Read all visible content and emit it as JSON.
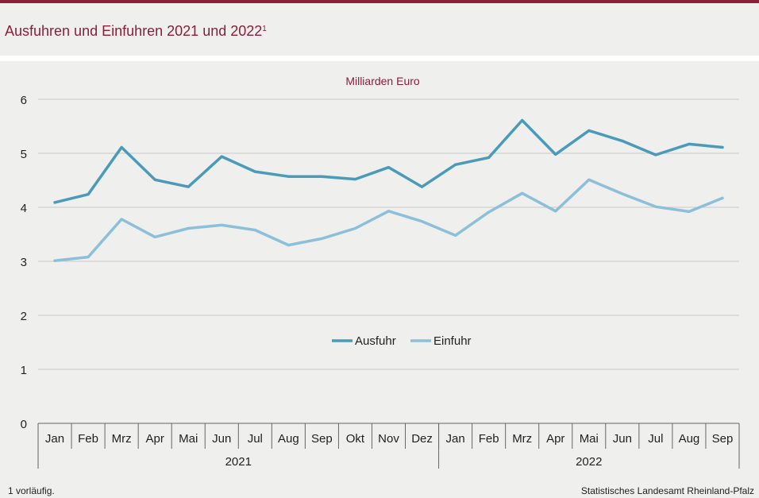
{
  "header": {
    "title": "Ausfuhren und Einfuhren 2021 und 2022",
    "title_sup": "1"
  },
  "footer": {
    "footnote": "1 vorläufig.",
    "source": "Statistisches Landesamt Rheinland-Pfalz"
  },
  "colors": {
    "accent": "#8a1f3a",
    "ausfuhr": "#4a9ab9",
    "einfuhr": "#8cc0d8",
    "background": "#efefee",
    "grid": "#c8c8c8"
  },
  "chart_data": {
    "type": "line",
    "unit_label": "Milliarden Euro",
    "ylim": [
      0,
      6
    ],
    "yticks": [
      0,
      1,
      2,
      3,
      4,
      5,
      6
    ],
    "grid": true,
    "legend_position": "center",
    "categories": [
      "Jan",
      "Feb",
      "Mrz",
      "Apr",
      "Mai",
      "Jun",
      "Jul",
      "Aug",
      "Sep",
      "Okt",
      "Nov",
      "Dez",
      "Jan",
      "Feb",
      "Mrz",
      "Apr",
      "Mai",
      "Jun",
      "Jul",
      "Aug",
      "Sep"
    ],
    "groups": [
      {
        "label": "2021",
        "count": 12
      },
      {
        "label": "2022",
        "count": 9
      }
    ],
    "series": [
      {
        "name": "Ausfuhr",
        "color": "#4a9ab9",
        "values": [
          4.09,
          4.24,
          5.11,
          4.51,
          4.38,
          4.94,
          4.66,
          4.57,
          4.57,
          4.52,
          4.74,
          4.38,
          4.79,
          4.92,
          5.61,
          4.98,
          5.42,
          5.23,
          4.97,
          5.17,
          5.11
        ]
      },
      {
        "name": "Einfuhr",
        "color": "#8cc0d8",
        "values": [
          3.01,
          3.08,
          3.78,
          3.45,
          3.61,
          3.67,
          3.58,
          3.3,
          3.42,
          3.61,
          3.93,
          3.74,
          3.48,
          3.91,
          4.26,
          3.93,
          4.51,
          4.25,
          4.01,
          3.92,
          4.17
        ]
      }
    ]
  }
}
